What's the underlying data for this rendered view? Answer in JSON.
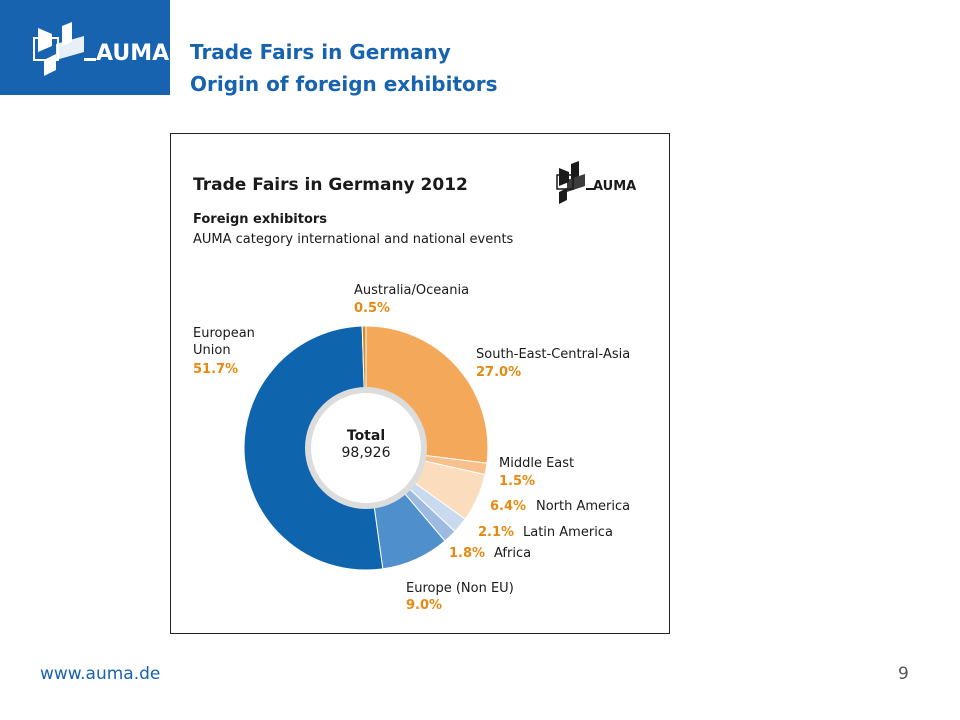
{
  "header": {
    "logo_text": "AUMA",
    "title_line1": "Trade Fairs in Germany",
    "title_line2": "Origin of foreign exhibitors"
  },
  "figure": {
    "logo_text": "AUMA"
  },
  "chart_data": {
    "type": "pie",
    "title": "Trade Fairs in Germany 2012",
    "subtitle_bold": "Foreign exhibitors",
    "subtitle": "AUMA category international and national events",
    "center_label": "Total",
    "center_value": "98,926",
    "unit": "%",
    "slices": [
      {
        "name": "South-East-Central-Asia",
        "value": 27.0,
        "label": "27.0%",
        "color": "#f4a95a"
      },
      {
        "name": "Middle East",
        "value": 1.5,
        "label": "1.5%",
        "color": "#f7c08c"
      },
      {
        "name": "North America",
        "value": 6.4,
        "label": "6.4%",
        "color": "#fbdcbd"
      },
      {
        "name": "Latin America",
        "value": 2.1,
        "label": "2.1%",
        "color": "#c9d9ee"
      },
      {
        "name": "Africa",
        "value": 1.8,
        "label": "1.8%",
        "color": "#9dbbe0"
      },
      {
        "name": "Europe (Non EU)",
        "value": 9.0,
        "label": "9.0%",
        "color": "#4f90cc"
      },
      {
        "name": "European Union",
        "value": 51.7,
        "label": "51.7%",
        "color": "#0f65ad"
      },
      {
        "name": "Australia/Oceania",
        "value": 0.5,
        "label": "0.5%",
        "color": "#d98a2c"
      }
    ],
    "labels": {
      "eu_line1": "European",
      "eu_line2": "Union"
    }
  },
  "footer": {
    "url": "www.auma.de",
    "page": "9"
  }
}
